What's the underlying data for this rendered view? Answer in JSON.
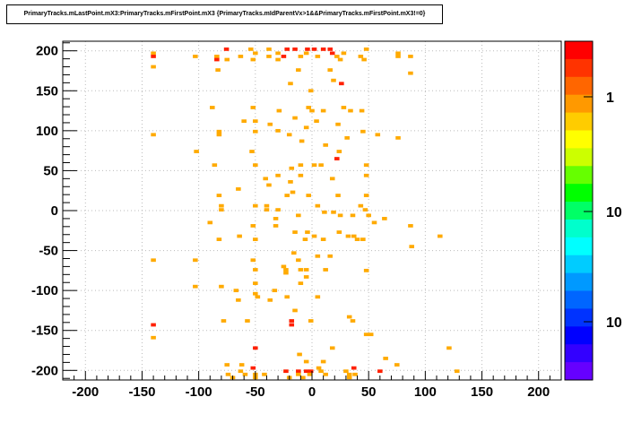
{
  "chart_data": {
    "type": "heatmap",
    "title": "PrimaryTracks.mLastPoint.mX3:PrimaryTracks.mFirstPoint.mX3 {PrimaryTracks.mIdParentVx>1&&PrimaryTracks.mFirstPoint.mX3!=0}",
    "xlabel": "",
    "ylabel": "",
    "xlim": [
      -220,
      220
    ],
    "ylim": [
      -212,
      212
    ],
    "x_ticks": [
      "-200",
      "-150",
      "-100",
      "-50",
      "0",
      "50",
      "100",
      "150",
      "200"
    ],
    "y_ticks": [
      "200",
      "150",
      "100",
      "50",
      "0",
      "-50",
      "-100",
      "-150",
      "-200"
    ],
    "grid": true,
    "colorbar": {
      "scale": "log",
      "labels": [
        "1",
        "10",
        "10"
      ],
      "colors": [
        "#ff0000",
        "#ff3300",
        "#ff6600",
        "#ff9900",
        "#ffcc00",
        "#ffff00",
        "#ccff00",
        "#66ff00",
        "#00ff00",
        "#00ff66",
        "#00ffcc",
        "#00ffff",
        "#00ccff",
        "#0099ff",
        "#0066ff",
        "#0033ff",
        "#0000ff",
        "#3300ff",
        "#6600ff"
      ]
    },
    "bins": {
      "size": [
        4.4,
        4.24
      ],
      "cells": [
        [
          -75.5,
          202,
          2
        ],
        [
          -22,
          202,
          2
        ],
        [
          -15,
          202,
          2
        ],
        [
          -4,
          202,
          2
        ],
        [
          2,
          202,
          2
        ],
        [
          10,
          202,
          2
        ],
        [
          16,
          202,
          2
        ],
        [
          48,
          202,
          1
        ],
        [
          -54,
          202,
          1
        ],
        [
          -38,
          202,
          1
        ],
        [
          -140,
          197,
          1
        ],
        [
          -140,
          193,
          2
        ],
        [
          -103,
          193,
          1
        ],
        [
          -84,
          193,
          1
        ],
        [
          -84,
          189,
          2
        ],
        [
          -75,
          189,
          1
        ],
        [
          -63,
          193,
          1
        ],
        [
          -50,
          197,
          1
        ],
        [
          -52,
          189,
          1
        ],
        [
          -38,
          193,
          1
        ],
        [
          -30,
          197,
          1
        ],
        [
          -25,
          193,
          2
        ],
        [
          -30,
          189,
          1
        ],
        [
          -10,
          193,
          1
        ],
        [
          5,
          193,
          1
        ],
        [
          -5,
          197,
          1
        ],
        [
          18,
          197,
          2
        ],
        [
          22,
          193,
          1
        ],
        [
          28,
          197,
          1
        ],
        [
          25,
          189,
          1
        ],
        [
          43,
          193,
          1
        ],
        [
          46,
          189,
          1
        ],
        [
          76,
          197,
          1
        ],
        [
          76,
          193,
          1
        ],
        [
          87,
          193,
          1
        ],
        [
          -140,
          180,
          1
        ],
        [
          -83,
          176,
          1
        ],
        [
          -12,
          176,
          1
        ],
        [
          16,
          176,
          1
        ],
        [
          87,
          172,
          1
        ],
        [
          -19,
          159,
          1
        ],
        [
          19,
          163,
          1
        ],
        [
          26,
          159,
          2
        ],
        [
          -1,
          150,
          1
        ],
        [
          -88,
          129,
          1
        ],
        [
          -52,
          129,
          1
        ],
        [
          -29,
          125,
          1
        ],
        [
          -3,
          129,
          1
        ],
        [
          0,
          125,
          1
        ],
        [
          10,
          125,
          1
        ],
        [
          28,
          129,
          1
        ],
        [
          34,
          125,
          1
        ],
        [
          44,
          125,
          1
        ],
        [
          -15,
          116,
          1
        ],
        [
          -60,
          112,
          1
        ],
        [
          -50,
          112,
          1
        ],
        [
          4,
          112,
          1
        ],
        [
          -37,
          108,
          1
        ],
        [
          23,
          108,
          1
        ],
        [
          -140,
          95,
          1
        ],
        [
          -82,
          99,
          1
        ],
        [
          -82,
          95,
          1
        ],
        [
          -50,
          99,
          1
        ],
        [
          -30,
          100,
          1
        ],
        [
          -20,
          95,
          1
        ],
        [
          -5,
          104,
          1
        ],
        [
          -9,
          87,
          1
        ],
        [
          31,
          91,
          1
        ],
        [
          45,
          99,
          1
        ],
        [
          58,
          95,
          1
        ],
        [
          76,
          91,
          1
        ],
        [
          -102,
          74,
          1
        ],
        [
          -53,
          74,
          1
        ],
        [
          24,
          74,
          1
        ],
        [
          12,
          82,
          1
        ],
        [
          -86,
          57,
          1
        ],
        [
          -50,
          57,
          1
        ],
        [
          -18,
          53,
          1
        ],
        [
          -10,
          57,
          1
        ],
        [
          2,
          57,
          1
        ],
        [
          8,
          57,
          1
        ],
        [
          22,
          65,
          2
        ],
        [
          48,
          57,
          1
        ],
        [
          -41,
          40,
          1
        ],
        [
          -38,
          32,
          1
        ],
        [
          -19,
          36,
          1
        ],
        [
          -30,
          44,
          1
        ],
        [
          -10,
          44,
          1
        ],
        [
          18,
          40,
          1
        ],
        [
          48,
          44,
          1
        ],
        [
          -82,
          19,
          1
        ],
        [
          -65,
          27,
          1
        ],
        [
          -22,
          19,
          1
        ],
        [
          -17,
          23,
          1
        ],
        [
          -3,
          19,
          1
        ],
        [
          23,
          19,
          1
        ],
        [
          48,
          19,
          1
        ],
        [
          -40,
          6,
          1
        ],
        [
          -30,
          1,
          1
        ],
        [
          -40,
          1,
          1
        ],
        [
          5,
          6,
          1
        ],
        [
          -90,
          -15,
          1
        ],
        [
          -80,
          6,
          1
        ],
        [
          -80,
          1,
          1
        ],
        [
          -50,
          6,
          1
        ],
        [
          -12,
          -6,
          1
        ],
        [
          11,
          -2,
          1
        ],
        [
          19,
          -2,
          1
        ],
        [
          25,
          -6,
          1
        ],
        [
          36,
          -6,
          1
        ],
        [
          43,
          6,
          1
        ],
        [
          47,
          1,
          1
        ],
        [
          50,
          -6,
          1
        ],
        [
          55,
          -15,
          1
        ],
        [
          64,
          -10,
          1
        ],
        [
          87,
          -19,
          1
        ],
        [
          113,
          -32,
          1
        ],
        [
          -52,
          -19,
          1
        ],
        [
          -50,
          -36,
          1
        ],
        [
          -32,
          -19,
          1
        ],
        [
          -32,
          -10,
          1
        ],
        [
          -82,
          -36,
          1
        ],
        [
          -64,
          -32,
          1
        ],
        [
          -15,
          -27,
          1
        ],
        [
          -6,
          -36,
          1
        ],
        [
          -4,
          -27,
          1
        ],
        [
          2,
          -32,
          1
        ],
        [
          10,
          -36,
          1
        ],
        [
          24,
          -27,
          1
        ],
        [
          32,
          -32,
          1
        ],
        [
          37,
          -32,
          1
        ],
        [
          45,
          -36,
          1
        ],
        [
          40,
          -36,
          1
        ],
        [
          88,
          -45,
          1
        ],
        [
          -140,
          -62,
          1
        ],
        [
          -103,
          -62,
          1
        ],
        [
          -52,
          -62,
          1
        ],
        [
          -12,
          -62,
          1
        ],
        [
          5,
          -57,
          1
        ],
        [
          16,
          -57,
          1
        ],
        [
          -25,
          -70,
          1
        ],
        [
          -50,
          -74,
          1
        ],
        [
          -10,
          -74,
          1
        ],
        [
          -16,
          -53,
          1
        ],
        [
          -5,
          -74,
          1
        ],
        [
          12,
          -74,
          1
        ],
        [
          48,
          -75,
          1
        ],
        [
          -103,
          -95,
          1
        ],
        [
          -80,
          -95,
          1
        ],
        [
          -50,
          -91,
          1
        ],
        [
          -23,
          -74,
          1
        ],
        [
          -23,
          -78,
          1
        ],
        [
          -10,
          -91,
          1
        ],
        [
          -5,
          -83,
          1
        ],
        [
          -50,
          -104,
          1
        ],
        [
          -65,
          -112,
          1
        ],
        [
          -67,
          -100,
          1
        ],
        [
          -33,
          -100,
          1
        ],
        [
          -48,
          -108,
          1
        ],
        [
          -37,
          -112,
          1
        ],
        [
          -22,
          -108,
          1
        ],
        [
          -15,
          -125,
          1
        ],
        [
          5,
          -108,
          1
        ],
        [
          -140,
          -143,
          2
        ],
        [
          -140,
          -159,
          1
        ],
        [
          -78,
          -138,
          1
        ],
        [
          -57,
          -138,
          1
        ],
        [
          -18,
          -138,
          2
        ],
        [
          -18,
          -143,
          2
        ],
        [
          -1,
          -138,
          1
        ],
        [
          33,
          -133,
          1
        ],
        [
          36,
          -138,
          1
        ],
        [
          48,
          -155,
          1
        ],
        [
          52,
          -155,
          1
        ],
        [
          -50,
          -172,
          2
        ],
        [
          -62,
          -193,
          1
        ],
        [
          -11,
          -180,
          1
        ],
        [
          -5,
          -189,
          1
        ],
        [
          10,
          -189,
          1
        ],
        [
          18,
          -172,
          1
        ],
        [
          -52,
          -197,
          2
        ],
        [
          -23,
          -201,
          2
        ],
        [
          -12,
          -201,
          2
        ],
        [
          -5,
          -201,
          2
        ],
        [
          -1,
          -201,
          2
        ],
        [
          60,
          -201,
          2
        ],
        [
          37,
          -197,
          2
        ],
        [
          12,
          -205,
          1
        ],
        [
          8,
          -201,
          1
        ],
        [
          6,
          -197,
          1
        ],
        [
          -74,
          -205,
          1
        ],
        [
          -50,
          -205,
          1
        ],
        [
          -59,
          -205,
          1
        ],
        [
          -12,
          -205,
          1
        ],
        [
          -2,
          -205,
          1
        ],
        [
          30,
          -201,
          1
        ],
        [
          75,
          -193,
          1
        ],
        [
          121,
          -172,
          1
        ],
        [
          128,
          -201,
          1
        ],
        [
          65,
          -185,
          1
        ],
        [
          -75,
          -193,
          1
        ],
        [
          -63,
          -201,
          1
        ],
        [
          -70,
          -209,
          1
        ],
        [
          -50,
          -209,
          1
        ],
        [
          -20,
          -209,
          1
        ],
        [
          -8,
          -209,
          1
        ],
        [
          33,
          -209,
          1
        ],
        [
          33,
          -205,
          1
        ],
        [
          38,
          -205,
          1
        ],
        [
          -42,
          -205,
          1
        ]
      ]
    }
  }
}
